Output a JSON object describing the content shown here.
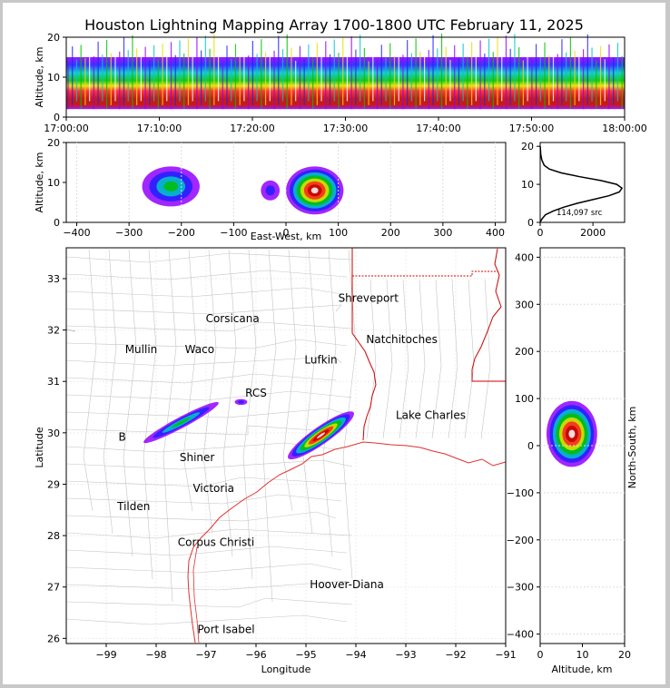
{
  "title": "Houston Lightning Mapping Array 1700-1800 UTC February 11, 2025",
  "colors": {
    "boundary_state": "#d00000",
    "boundary_county": "#bdbdbd",
    "coast": "#e03030",
    "highlight_city": "#f08a3c",
    "platform": "#2020e0"
  },
  "time_height": {
    "ylabel": "Altitude, km",
    "yticks": [
      "0",
      "10",
      "20"
    ],
    "xticks": [
      "17:00:00",
      "17:10:00",
      "17:20:00",
      "17:30:00",
      "17:40:00",
      "17:50:00",
      "18:00:00"
    ]
  },
  "ew_height": {
    "ylabel": "Altitude, km",
    "xlabel": "East-West, km",
    "yticks": [
      "0",
      "10",
      "20"
    ],
    "xticks": [
      "−400",
      "−300",
      "−200",
      "−100",
      "0",
      "100",
      "200",
      "300",
      "400"
    ]
  },
  "histogram": {
    "yticks": [
      "0",
      "10",
      "20"
    ],
    "xticks": [
      "0",
      "2000"
    ],
    "annotation": "114,097 src"
  },
  "plan": {
    "ylabel": "Latitude",
    "xlabel": "Longitude",
    "yticks": [
      "26",
      "27",
      "28",
      "29",
      "30",
      "31",
      "32",
      "33"
    ],
    "xticks": [
      "−99",
      "−98",
      "−97",
      "−96",
      "−95",
      "−94",
      "−93",
      "−92",
      "−91"
    ],
    "cities": [
      {
        "name": "Shreveport",
        "lon": -93.75,
        "lat": 32.55
      },
      {
        "name": "Corsicana",
        "lon": -96.47,
        "lat": 32.15
      },
      {
        "name": "Natchitoches",
        "lon": -93.08,
        "lat": 31.75
      },
      {
        "name": "Mullin",
        "lon": -98.3,
        "lat": 31.55,
        "highlight": true
      },
      {
        "name": "Waco",
        "lon": -97.13,
        "lat": 31.55
      },
      {
        "name": "Lufkin",
        "lon": -94.7,
        "lat": 31.35
      },
      {
        "name": "Lake Charles",
        "lon": -92.5,
        "lat": 30.27
      },
      {
        "name": "Shiner",
        "lon": -97.18,
        "lat": 29.45
      },
      {
        "name": "Victoria",
        "lon": -96.85,
        "lat": 28.85
      },
      {
        "name": "Tilden",
        "lon": -98.45,
        "lat": 28.5
      },
      {
        "name": "Corpus Christi",
        "lon": -96.8,
        "lat": 27.8
      },
      {
        "name": "Hoover-Diana",
        "lon": -94.18,
        "lat": 26.98,
        "platform": true
      },
      {
        "name": "Port Isabel",
        "lon": -96.6,
        "lat": 26.1
      },
      {
        "name": "B",
        "lon": -98.68,
        "lat": 29.85
      },
      {
        "name": "RCS",
        "lon": -96.0,
        "lat": 30.7
      }
    ]
  },
  "ns_height": {
    "xlabel": "Altitude, km",
    "ylabel": "North-South, km",
    "xticks": [
      "0",
      "10",
      "20"
    ],
    "yticks": [
      "−400",
      "−300",
      "−200",
      "−100",
      "0",
      "100",
      "200",
      "300",
      "400"
    ]
  },
  "chart_data": [
    {
      "type": "heatmap",
      "panel": "time-height",
      "xlabel": "",
      "ylabel": "Altitude, km",
      "xlim": [
        "17:00:00",
        "18:00:00"
      ],
      "ylim": [
        0,
        20
      ],
      "source_density_bands": [
        {
          "time": "17:00",
          "alt_min_km": 2,
          "alt_max_km": 14,
          "core_alt_km": 9
        },
        {
          "time": "17:10",
          "alt_min_km": 2,
          "alt_max_km": 15,
          "core_alt_km": 9
        },
        {
          "time": "17:20",
          "alt_min_km": 2,
          "alt_max_km": 15,
          "core_alt_km": 9
        },
        {
          "time": "17:30",
          "alt_min_km": 2,
          "alt_max_km": 15,
          "core_alt_km": 8
        },
        {
          "time": "17:40",
          "alt_min_km": 3,
          "alt_max_km": 14,
          "core_alt_km": 8
        },
        {
          "time": "17:50",
          "alt_min_km": 3,
          "alt_max_km": 14,
          "core_alt_km": 8
        },
        {
          "time": "18:00",
          "alt_min_km": 3,
          "alt_max_km": 13,
          "core_alt_km": 8
        }
      ]
    },
    {
      "type": "heatmap",
      "panel": "east-west vs altitude",
      "xlabel": "East-West, km",
      "ylabel": "Altitude, km",
      "xlim": [
        -420,
        420
      ],
      "ylim": [
        0,
        20
      ],
      "clusters": [
        {
          "x_km": -220,
          "alt_km": 9,
          "x_spread": 55,
          "alt_spread": 5,
          "peak": 0.55
        },
        {
          "x_km": 55,
          "alt_km": 8,
          "x_spread": 55,
          "alt_spread": 6,
          "peak": 1.0
        },
        {
          "x_km": -30,
          "alt_km": 8,
          "x_spread": 18,
          "alt_spread": 2.5,
          "peak": 0.25
        }
      ]
    },
    {
      "type": "line",
      "panel": "altitude histogram",
      "xlabel": "",
      "ylabel": "",
      "xlim": [
        0,
        3200
      ],
      "ylim": [
        0,
        21
      ],
      "total_sources": 114097,
      "x": [
        0,
        30,
        80,
        200,
        500,
        900,
        1400,
        2000,
        2600,
        3000,
        3100,
        2900,
        2300,
        1500,
        800,
        350,
        150,
        60,
        20,
        5
      ],
      "y": [
        0,
        0.5,
        1,
        2,
        3,
        4,
        5,
        6,
        7,
        8,
        9,
        10,
        11,
        12,
        13,
        14,
        15,
        16.5,
        18,
        20
      ]
    },
    {
      "type": "scatter",
      "panel": "plan view",
      "xlabel": "Longitude",
      "ylabel": "Latitude",
      "xlim": [
        -99.8,
        -91
      ],
      "ylim": [
        25.9,
        33.6
      ],
      "source_regions": [
        {
          "lon": -97.5,
          "lat": 30.2,
          "length_deg": 1.7,
          "width_deg": 0.22,
          "angle_deg": 28,
          "peak": 0.55
        },
        {
          "lon": -94.7,
          "lat": 29.95,
          "length_deg": 1.6,
          "width_deg": 0.35,
          "angle_deg": 35,
          "peak": 1.0
        },
        {
          "lon": -96.3,
          "lat": 30.6,
          "length_deg": 0.25,
          "width_deg": 0.12,
          "angle_deg": 0,
          "peak": 0.2
        }
      ]
    },
    {
      "type": "heatmap",
      "panel": "altitude vs north-south",
      "xlabel": "Altitude, km",
      "ylabel": "North-South, km",
      "xlim": [
        0,
        20
      ],
      "ylim": [
        -420,
        420
      ],
      "clusters": [
        {
          "alt_km": 7.5,
          "y_km": 25,
          "alt_spread": 6,
          "y_spread": 70,
          "peak": 1.0
        }
      ]
    }
  ]
}
